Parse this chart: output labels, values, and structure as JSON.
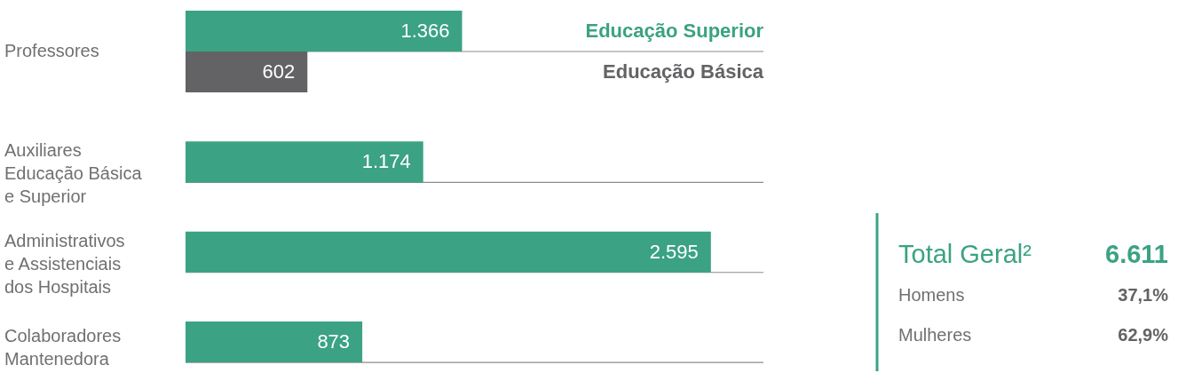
{
  "chart_data": [
    {
      "type": "bar",
      "orientation": "horizontal",
      "grid": "y",
      "categories": [
        "Professores",
        "Auxiliares Educação Básica e Superior",
        "Administrativos e Assistenciais dos Hospitais",
        "Colaboradores Mantenedora"
      ],
      "series": [
        {
          "name": "Educação Superior",
          "color": "#3ba283",
          "values": [
            1366,
            null,
            null,
            null
          ],
          "value_labels": [
            "1.366",
            null,
            null,
            null
          ]
        },
        {
          "name": "Educação Básica",
          "color": "#636366",
          "values": [
            602,
            null,
            null,
            null
          ],
          "value_labels": [
            "602",
            null,
            null,
            null
          ]
        },
        {
          "color": "#3ba283",
          "values": [
            null,
            1174,
            2595,
            873
          ],
          "value_labels": [
            null,
            "1.174",
            "2.595",
            "873"
          ]
        }
      ]
    },
    {
      "type": "other",
      "annotations": [
        "Total Geral²",
        "6.611",
        "Homens",
        "37,1%",
        "Mulheres",
        "62,9%"
      ]
    }
  ]
}
